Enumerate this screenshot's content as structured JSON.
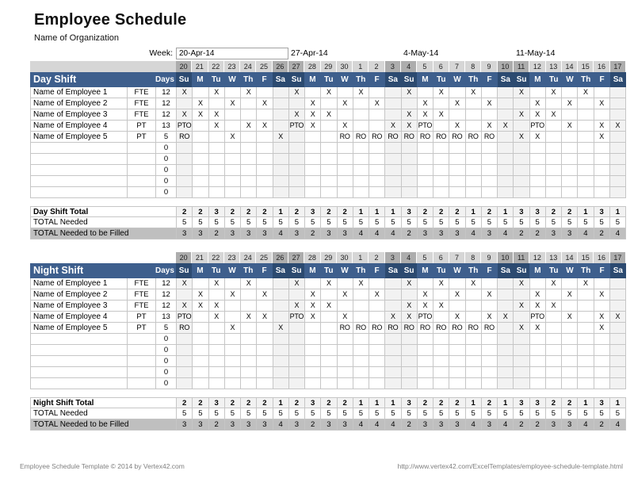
{
  "header": {
    "title": "Employee Schedule",
    "org": "Name of Organization",
    "week_label": "Week:",
    "week_value": "20-Apr-14",
    "weeks": [
      "27-Apr-14",
      "4-May-14",
      "11-May-14"
    ]
  },
  "calendar": {
    "dates": [
      "20",
      "21",
      "22",
      "23",
      "24",
      "25",
      "26",
      "27",
      "28",
      "29",
      "30",
      "1",
      "2",
      "3",
      "4",
      "5",
      "6",
      "7",
      "8",
      "9",
      "10",
      "11",
      "12",
      "13",
      "14",
      "15",
      "16",
      "17"
    ],
    "dow": [
      "Su",
      "M",
      "Tu",
      "W",
      "Th",
      "F",
      "Sa",
      "Su",
      "M",
      "Tu",
      "W",
      "Th",
      "F",
      "Sa",
      "Su",
      "M",
      "Tu",
      "W",
      "Th",
      "F",
      "Sa",
      "Su",
      "M",
      "Tu",
      "W",
      "Th",
      "F",
      "Sa"
    ],
    "weekend_indices": [
      0,
      6,
      7,
      13,
      14,
      20,
      21,
      27
    ]
  },
  "day_shift": {
    "title": "Day Shift",
    "days_label": "Days",
    "rows": [
      {
        "name": "Name of Employee 1",
        "type": "FTE",
        "days": "12",
        "marks": [
          "X",
          "",
          "X",
          "",
          "X",
          "",
          "",
          "X",
          "",
          "X",
          "",
          "X",
          "",
          "",
          "X",
          "",
          "X",
          "",
          "X",
          "",
          "",
          "X",
          "",
          "X",
          "",
          "X",
          "",
          ""
        ]
      },
      {
        "name": "Name of Employee 2",
        "type": "FTE",
        "days": "12",
        "marks": [
          "",
          "X",
          "",
          "X",
          "",
          "X",
          "",
          "",
          "X",
          "",
          "X",
          "",
          "X",
          "",
          "",
          "X",
          "",
          "X",
          "",
          "X",
          "",
          "",
          "X",
          "",
          "X",
          "",
          "X",
          ""
        ]
      },
      {
        "name": "Name of Employee 3",
        "type": "FTE",
        "days": "12",
        "marks": [
          "X",
          "X",
          "X",
          "",
          "",
          "",
          "",
          "X",
          "X",
          "X",
          "",
          "",
          "",
          "",
          "X",
          "X",
          "X",
          "",
          "",
          "",
          "",
          "X",
          "X",
          "X",
          "",
          "",
          "",
          ""
        ]
      },
      {
        "name": "Name of Employee 4",
        "type": "PT",
        "days": "13",
        "marks": [
          "PTO",
          "",
          "X",
          "",
          "X",
          "X",
          "",
          "PTO",
          "X",
          "",
          "X",
          "",
          "",
          "X",
          "X",
          "PTO",
          "",
          "X",
          "",
          "X",
          "X",
          "",
          "PTO",
          "",
          "X",
          "",
          "X",
          "X"
        ]
      },
      {
        "name": "Name of Employee 5",
        "type": "PT",
        "days": "5",
        "marks": [
          "RO",
          "",
          "",
          "X",
          "",
          "",
          "X",
          "",
          "",
          "",
          "RO",
          "RO",
          "RO",
          "RO",
          "RO",
          "RO",
          "RO",
          "RO",
          "RO",
          "RO",
          "",
          "X",
          "X",
          "",
          "",
          "",
          "X",
          ""
        ]
      },
      {
        "name": "",
        "type": "",
        "days": "0",
        "marks": []
      },
      {
        "name": "",
        "type": "",
        "days": "0",
        "marks": []
      },
      {
        "name": "",
        "type": "",
        "days": "0",
        "marks": []
      },
      {
        "name": "",
        "type": "",
        "days": "0",
        "marks": []
      },
      {
        "name": "",
        "type": "",
        "days": "0",
        "marks": []
      }
    ],
    "totals": {
      "total_label": "Day Shift Total",
      "total": [
        "2",
        "2",
        "3",
        "2",
        "2",
        "2",
        "1",
        "2",
        "3",
        "2",
        "2",
        "1",
        "1",
        "1",
        "3",
        "2",
        "2",
        "2",
        "1",
        "2",
        "1",
        "3",
        "3",
        "2",
        "2",
        "1",
        "3",
        "1"
      ],
      "needed_label": "TOTAL Needed",
      "needed": [
        "5",
        "5",
        "5",
        "5",
        "5",
        "5",
        "5",
        "5",
        "5",
        "5",
        "5",
        "5",
        "5",
        "5",
        "5",
        "5",
        "5",
        "5",
        "5",
        "5",
        "5",
        "5",
        "5",
        "5",
        "5",
        "5",
        "5",
        "5"
      ],
      "filled_label": "TOTAL Needed to be Filled",
      "filled": [
        "3",
        "3",
        "2",
        "3",
        "3",
        "3",
        "4",
        "3",
        "2",
        "3",
        "3",
        "4",
        "4",
        "4",
        "2",
        "3",
        "3",
        "3",
        "4",
        "3",
        "4",
        "2",
        "2",
        "3",
        "3",
        "4",
        "2",
        "4"
      ]
    }
  },
  "night_shift": {
    "title": "Night Shift",
    "days_label": "Days",
    "rows": [
      {
        "name": "Name of Employee 1",
        "type": "FTE",
        "days": "12",
        "marks": [
          "X",
          "",
          "X",
          "",
          "X",
          "",
          "",
          "X",
          "",
          "X",
          "",
          "X",
          "",
          "",
          "X",
          "",
          "X",
          "",
          "X",
          "",
          "",
          "X",
          "",
          "X",
          "",
          "X",
          "",
          ""
        ]
      },
      {
        "name": "Name of Employee 2",
        "type": "FTE",
        "days": "12",
        "marks": [
          "",
          "X",
          "",
          "X",
          "",
          "X",
          "",
          "",
          "X",
          "",
          "X",
          "",
          "X",
          "",
          "",
          "X",
          "",
          "X",
          "",
          "X",
          "",
          "",
          "X",
          "",
          "X",
          "",
          "X",
          ""
        ]
      },
      {
        "name": "Name of Employee 3",
        "type": "FTE",
        "days": "12",
        "marks": [
          "X",
          "X",
          "X",
          "",
          "",
          "",
          "",
          "X",
          "X",
          "X",
          "",
          "",
          "",
          "",
          "X",
          "X",
          "X",
          "",
          "",
          "",
          "",
          "X",
          "X",
          "X",
          "",
          "",
          "",
          ""
        ]
      },
      {
        "name": "Name of Employee 4",
        "type": "PT",
        "days": "13",
        "marks": [
          "PTO",
          "",
          "X",
          "",
          "X",
          "X",
          "",
          "PTO",
          "X",
          "",
          "X",
          "",
          "",
          "X",
          "X",
          "PTO",
          "",
          "X",
          "",
          "X",
          "X",
          "",
          "PTO",
          "",
          "X",
          "",
          "X",
          "X"
        ]
      },
      {
        "name": "Name of Employee 5",
        "type": "PT",
        "days": "5",
        "marks": [
          "RO",
          "",
          "",
          "X",
          "",
          "",
          "X",
          "",
          "",
          "",
          "RO",
          "RO",
          "RO",
          "RO",
          "RO",
          "RO",
          "RO",
          "RO",
          "RO",
          "RO",
          "",
          "X",
          "X",
          "",
          "",
          "",
          "X",
          ""
        ]
      },
      {
        "name": "",
        "type": "",
        "days": "0",
        "marks": []
      },
      {
        "name": "",
        "type": "",
        "days": "0",
        "marks": []
      },
      {
        "name": "",
        "type": "",
        "days": "0",
        "marks": []
      },
      {
        "name": "",
        "type": "",
        "days": "0",
        "marks": []
      },
      {
        "name": "",
        "type": "",
        "days": "0",
        "marks": []
      }
    ],
    "totals": {
      "total_label": "Night Shift Total",
      "total": [
        "2",
        "2",
        "3",
        "2",
        "2",
        "2",
        "1",
        "2",
        "3",
        "2",
        "2",
        "1",
        "1",
        "1",
        "3",
        "2",
        "2",
        "2",
        "1",
        "2",
        "1",
        "3",
        "3",
        "2",
        "2",
        "1",
        "3",
        "1"
      ],
      "needed_label": "TOTAL Needed",
      "needed": [
        "5",
        "5",
        "5",
        "5",
        "5",
        "5",
        "5",
        "5",
        "5",
        "5",
        "5",
        "5",
        "5",
        "5",
        "5",
        "5",
        "5",
        "5",
        "5",
        "5",
        "5",
        "5",
        "5",
        "5",
        "5",
        "5",
        "5",
        "5"
      ],
      "filled_label": "TOTAL Needed to be Filled",
      "filled": [
        "3",
        "3",
        "2",
        "3",
        "3",
        "3",
        "4",
        "3",
        "2",
        "3",
        "3",
        "4",
        "4",
        "4",
        "2",
        "3",
        "3",
        "3",
        "4",
        "3",
        "4",
        "2",
        "2",
        "3",
        "3",
        "4",
        "2",
        "4"
      ]
    }
  },
  "footer": {
    "left": "Employee Schedule Template © 2014 by Vertex42.com",
    "right": "http://www.vertex42.com/ExcelTemplates/employee-schedule-template.html"
  },
  "colors": {
    "header_blue": "#3E5F8D",
    "weekend_header_blue": "#2C4A70",
    "date_strip_gray": "#D6D6D6",
    "date_strip_weekend_gray": "#ADADAD",
    "weekend_column_tint": "#F2F2F2",
    "total_row_tint": "#F2F2F2",
    "filled_row_gray": "#BFBFBF",
    "grid_border": "#C6C6C6"
  }
}
